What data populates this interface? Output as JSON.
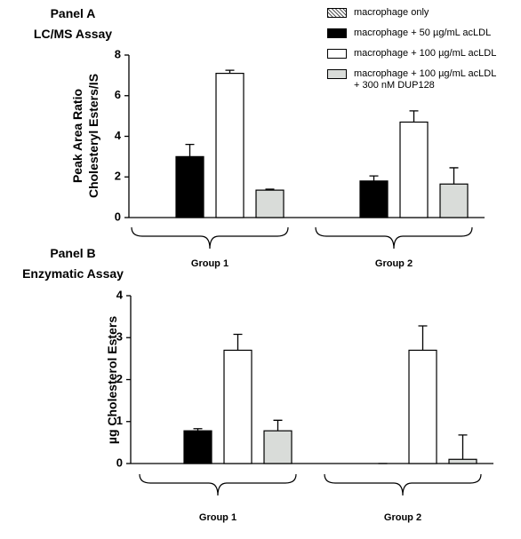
{
  "chart_data": [
    {
      "type": "bar",
      "title": "Panel A\nLC/MS Assay",
      "y_label": "Peak Area Ratio\nCholesteryl Esters/IS",
      "categories": [
        "Group 1",
        "Group 2"
      ],
      "ylim": [
        0,
        8
      ],
      "yticks": [
        0,
        2,
        4,
        6,
        8
      ],
      "legend": "upper right",
      "series": [
        {
          "name": "macrophage only",
          "color": "#ffffff",
          "pattern": "crosshatch",
          "values": [
            0,
            0
          ]
        },
        {
          "name": "macrophage + 50 µg/mL acLDL",
          "color": "#000000",
          "values": [
            3.0,
            1.8
          ],
          "errors": [
            0.6,
            0.25
          ]
        },
        {
          "name": "macrophage + 100 µg/mL acLDL",
          "color": "#ffffff",
          "values": [
            7.1,
            4.7
          ],
          "errors": [
            0.15,
            0.55
          ]
        },
        {
          "name": "macrophage + 100 µg/mL acLDL\n+ 300 nM DUP128",
          "color": "#d9dcd9",
          "values": [
            1.35,
            1.65
          ],
          "errors": [
            0.05,
            0.8
          ]
        }
      ]
    },
    {
      "type": "bar",
      "title": "Panel B\nEnzymatic Assay",
      "y_label": "µg Cholesterol Esters",
      "categories": [
        "Group 1",
        "Group 2"
      ],
      "ylim": [
        0,
        4
      ],
      "yticks": [
        0,
        1,
        2,
        3,
        4
      ],
      "series": [
        {
          "color": "#ffffff",
          "pattern": "crosshatch",
          "values": [
            0,
            0
          ]
        },
        {
          "color": "#000000",
          "values": [
            0.78,
            0
          ],
          "errors": [
            0.05,
            0
          ]
        },
        {
          "color": "#ffffff",
          "values": [
            2.7,
            2.7
          ],
          "errors": [
            0.38,
            0.58
          ]
        },
        {
          "color": "#d9dcd9",
          "values": [
            0.78,
            0.1
          ],
          "errors": [
            0.25,
            0.58
          ]
        }
      ]
    }
  ]
}
